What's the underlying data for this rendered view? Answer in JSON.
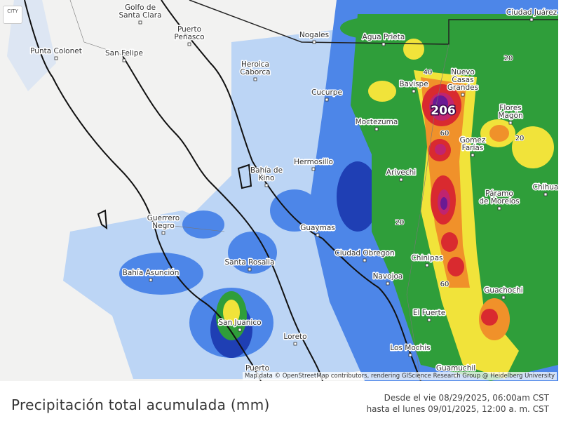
{
  "map": {
    "city_toggle": "CITY",
    "cities": [
      {
        "lines": [
          "Golfo de",
          "Santa Clara"
        ]
      },
      {
        "lines": [
          "Puerto",
          "Peñasco"
        ]
      },
      {
        "lines": [
          "Punta Colonet"
        ]
      },
      {
        "lines": [
          "San Felipe"
        ]
      },
      {
        "lines": [
          "Nogales"
        ]
      },
      {
        "lines": [
          "Agua Prieta"
        ]
      },
      {
        "lines": [
          "Ciudad Juárez"
        ]
      },
      {
        "lines": [
          "Heroica",
          "Caborca"
        ]
      },
      {
        "lines": [
          "Cucurpe"
        ]
      },
      {
        "lines": [
          "Bavispe"
        ]
      },
      {
        "lines": [
          "Nuevo",
          "Casas",
          "Grandes"
        ]
      },
      {
        "lines": [
          "Flores",
          "Magón"
        ]
      },
      {
        "lines": [
          "Moctezuma"
        ]
      },
      {
        "lines": [
          "Gomez",
          "Farías"
        ]
      },
      {
        "lines": [
          "Hermosillo"
        ]
      },
      {
        "lines": [
          "Bahía de",
          "Kino"
        ]
      },
      {
        "lines": [
          "Arivechi"
        ]
      },
      {
        "lines": [
          "Páramo",
          "de Morelos"
        ]
      },
      {
        "lines": [
          "Chihua"
        ]
      },
      {
        "lines": [
          "Guerrero",
          "Negro"
        ]
      },
      {
        "lines": [
          "Guaymas"
        ]
      },
      {
        "lines": [
          "Ciudad Obregon"
        ]
      },
      {
        "lines": [
          "Chinipas"
        ]
      },
      {
        "lines": [
          "Santa Rosalia"
        ]
      },
      {
        "lines": [
          "Bahía Asunción"
        ]
      },
      {
        "lines": [
          "Navojoa"
        ]
      },
      {
        "lines": [
          "Guachochi"
        ]
      },
      {
        "lines": [
          "El Fuerte"
        ]
      },
      {
        "lines": [
          "San Juanico"
        ]
      },
      {
        "lines": [
          "Loreto"
        ]
      },
      {
        "lines": [
          "Los Mochis"
        ]
      },
      {
        "lines": [
          "Puerto"
        ]
      },
      {
        "lines": [
          "Guamuchil"
        ]
      }
    ],
    "contour_labels": [
      40,
      206,
      60,
      20,
      20,
      20,
      60
    ],
    "attribution": "Map data © OpenStreetMap contributors, rendering GIScience Research Group @ Heidelberg University"
  },
  "footer": {
    "title": "Precipitación total acumulada (mm)",
    "range_from": "Desde el vie 08/29/2025, 06:00am CST",
    "range_to": "hasta el lunes 09/01/2025, 12:00 a. m. CST"
  }
}
